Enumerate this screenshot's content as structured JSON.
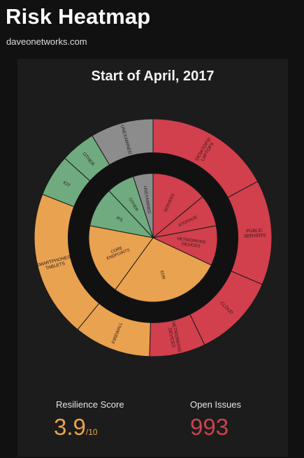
{
  "header": {
    "title": "Risk Heatmap",
    "subtitle": "daveonetworks.com"
  },
  "panel": {
    "title": "Start of April, 2017"
  },
  "colors": {
    "red": "#d23f4d",
    "orange": "#e9a24f",
    "green": "#6fab7e",
    "gray": "#8c8c8c",
    "background": "#111111",
    "card": "#1c1c1c",
    "ring": "#111111"
  },
  "chart_data": {
    "type": "pie",
    "inner_ring": [
      {
        "label": "SERVERS",
        "value": 14,
        "color": "red"
      },
      {
        "label": "STORAGE",
        "value": 8,
        "color": "red"
      },
      {
        "label": "NETWORKING DEVICES",
        "value": 10,
        "color": "red"
      },
      {
        "label": "EDR",
        "value": 28,
        "color": "orange"
      },
      {
        "label": "CORE ENDPOINTS",
        "value": 18,
        "color": "orange"
      },
      {
        "label": "IPS",
        "value": 10,
        "color": "green"
      },
      {
        "label": "OTHER",
        "value": 7,
        "color": "green"
      },
      {
        "label": "UNEXAMINED",
        "value": 5,
        "color": "gray"
      }
    ],
    "outer_ring": [
      {
        "label": "DESKTOPS/ LAPTOPS",
        "value": 18,
        "color": "red"
      },
      {
        "label": "PUBLIC SERVERS",
        "value": 15,
        "color": "red"
      },
      {
        "label": "CLOUD",
        "value": 12,
        "color": "red"
      },
      {
        "label": "NETWORKING DEVICES",
        "value": 8,
        "color": "red"
      },
      {
        "label": "FIREWALL",
        "value": 11,
        "color": "orange"
      },
      {
        "label": "SMARTPHONES/ TABLETS",
        "value": 21,
        "color": "orange"
      },
      {
        "label": "IOT",
        "value": 6,
        "color": "green"
      },
      {
        "label": "OTHER",
        "value": 5,
        "color": "green"
      },
      {
        "label": "UNEXAMINED",
        "value": 9,
        "color": "gray"
      }
    ]
  },
  "metrics": {
    "resilience_label": "Resilience Score",
    "resilience_value": "3.9",
    "resilience_denominator": "/10",
    "issues_label": "Open Issues",
    "issues_value": "993"
  }
}
